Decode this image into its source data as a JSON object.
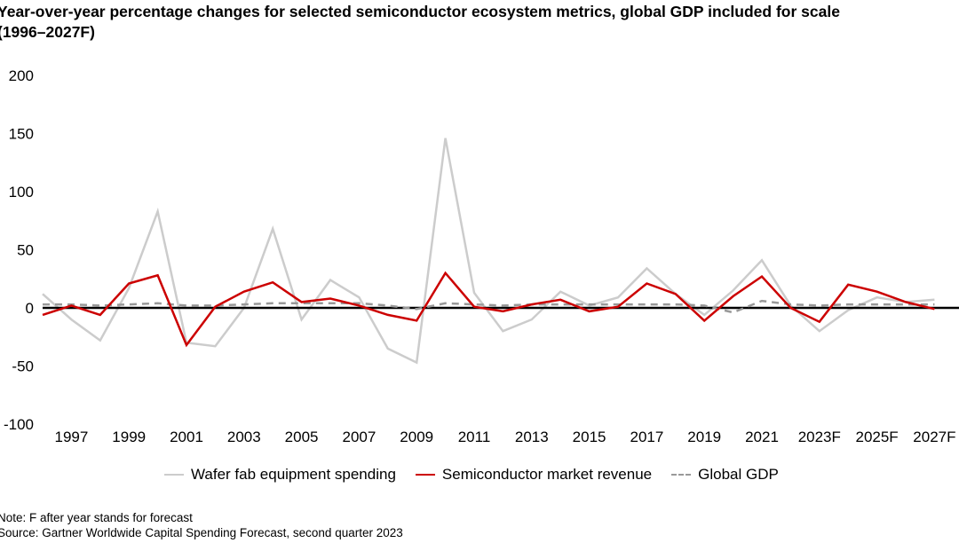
{
  "title": "Year-over-year percentage changes for selected semiconductor ecosystem metrics, global GDP included for scale (1996–2027F)",
  "notes": {
    "note": "Note: F after year stands for forecast",
    "source": "Source: Gartner Worldwide Capital Spending Forecast, second quarter 2023"
  },
  "chart_data": {
    "type": "line",
    "title": "Year-over-year percentage changes for selected semiconductor ecosystem metrics, global GDP included for scale (1996–2027F)",
    "xlabel": "",
    "ylabel": "",
    "x": [
      1996,
      1997,
      1998,
      1999,
      2000,
      2001,
      2002,
      2003,
      2004,
      2005,
      2006,
      2007,
      2008,
      2009,
      2010,
      2011,
      2012,
      2013,
      2014,
      2015,
      2016,
      2017,
      2018,
      2019,
      2020,
      2021,
      2022,
      2023,
      2024,
      2025,
      2026,
      2027
    ],
    "x_tick_labels": [
      "1997",
      "1999",
      "2001",
      "2003",
      "2005",
      "2007",
      "2009",
      "2011",
      "2013",
      "2015",
      "2017",
      "2019",
      "2021",
      "2023F",
      "2025F",
      "2027F"
    ],
    "y_ticks": [
      "200",
      "150",
      "100",
      "50",
      "0",
      "-50",
      "-100"
    ],
    "ylim": [
      -100,
      200
    ],
    "grid": false,
    "legend_position": "bottom",
    "series": [
      {
        "name": "Wafer fab equipment spending",
        "color": "#cccccc",
        "dash": false,
        "values": [
          12,
          -10,
          -28,
          17,
          83,
          -30,
          -33,
          0,
          68,
          -10,
          24,
          9,
          -35,
          -47,
          146,
          13,
          -20,
          -10,
          14,
          2,
          9,
          34,
          12,
          -6,
          15,
          41,
          2,
          -20,
          -2,
          9,
          5,
          7
        ]
      },
      {
        "name": "Semiconductor market revenue",
        "color": "#cc0000",
        "dash": false,
        "values": [
          -6,
          2,
          -6,
          21,
          28,
          -32,
          1,
          14,
          22,
          5,
          8,
          2,
          -6,
          -11,
          30,
          1,
          -3,
          3,
          7,
          -3,
          1,
          21,
          12,
          -11,
          10,
          27,
          0,
          -12,
          20,
          14,
          5,
          -1
        ]
      },
      {
        "name": "Global GDP",
        "color": "#999999",
        "dash": true,
        "values": [
          3,
          3,
          2,
          3,
          4,
          2,
          2,
          3,
          4,
          4,
          4,
          4,
          2,
          -1,
          4,
          3,
          2,
          3,
          3,
          3,
          3,
          3,
          3,
          2,
          -4,
          6,
          3,
          2,
          3,
          3,
          3,
          3
        ]
      }
    ]
  }
}
